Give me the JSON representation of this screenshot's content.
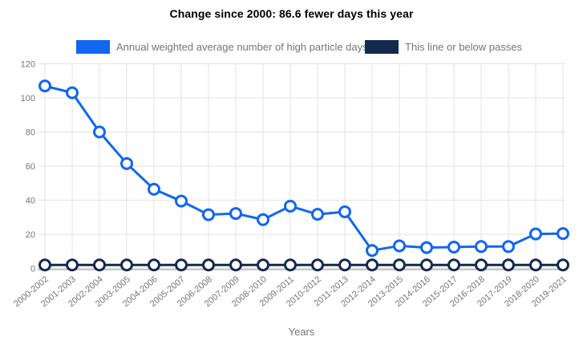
{
  "title": "Change since 2000: 86.6 fewer days this year",
  "legend": {
    "items": [
      {
        "label": "Annual weighted average number of high particle days",
        "color": "#1266f0"
      },
      {
        "label": "This line or below passes",
        "color": "#14294e"
      }
    ]
  },
  "chart_data": {
    "type": "line",
    "title": "Change since 2000: 86.6 fewer days this year",
    "categories": [
      "2000-2002",
      "2001-2003",
      "2002-2004",
      "2003-2005",
      "2004-2006",
      "2005-2007",
      "2006-2008",
      "2007-2009",
      "2008-2010",
      "2009-2011",
      "2010-2012",
      "2011-2013",
      "2012-2014",
      "2013-2015",
      "2014-2016",
      "2015-2017",
      "2016-2018",
      "2017-2019",
      "2018-2020",
      "2019-2021"
    ],
    "series": [
      {
        "name": "Annual weighted average number of high particle days",
        "color": "#1266f0",
        "values": [
          107,
          103,
          80,
          61.5,
          46.4,
          39.5,
          31.5,
          32.2,
          28.6,
          36.5,
          31.7,
          33.2,
          10.5,
          13.2,
          12.2,
          12.5,
          12.8,
          12.8,
          20.2,
          20.4
        ]
      },
      {
        "name": "This line or below passes",
        "color": "#14294e",
        "values": [
          2,
          2,
          2,
          2,
          2,
          2,
          2,
          2,
          2,
          2,
          2,
          2,
          2,
          2,
          2,
          2,
          2,
          2,
          2,
          2
        ]
      }
    ],
    "xlabel": "Years",
    "ylabel": "",
    "ylim": [
      0,
      120
    ],
    "yticks": [
      0,
      20,
      40,
      60,
      80,
      100,
      120
    ],
    "grid": true,
    "legend_position": "top",
    "marker": "open-circle",
    "gridline_color": "#e3e3e3",
    "axis_line_color": "#c7c7c7",
    "tick_label_color": "#757575"
  }
}
